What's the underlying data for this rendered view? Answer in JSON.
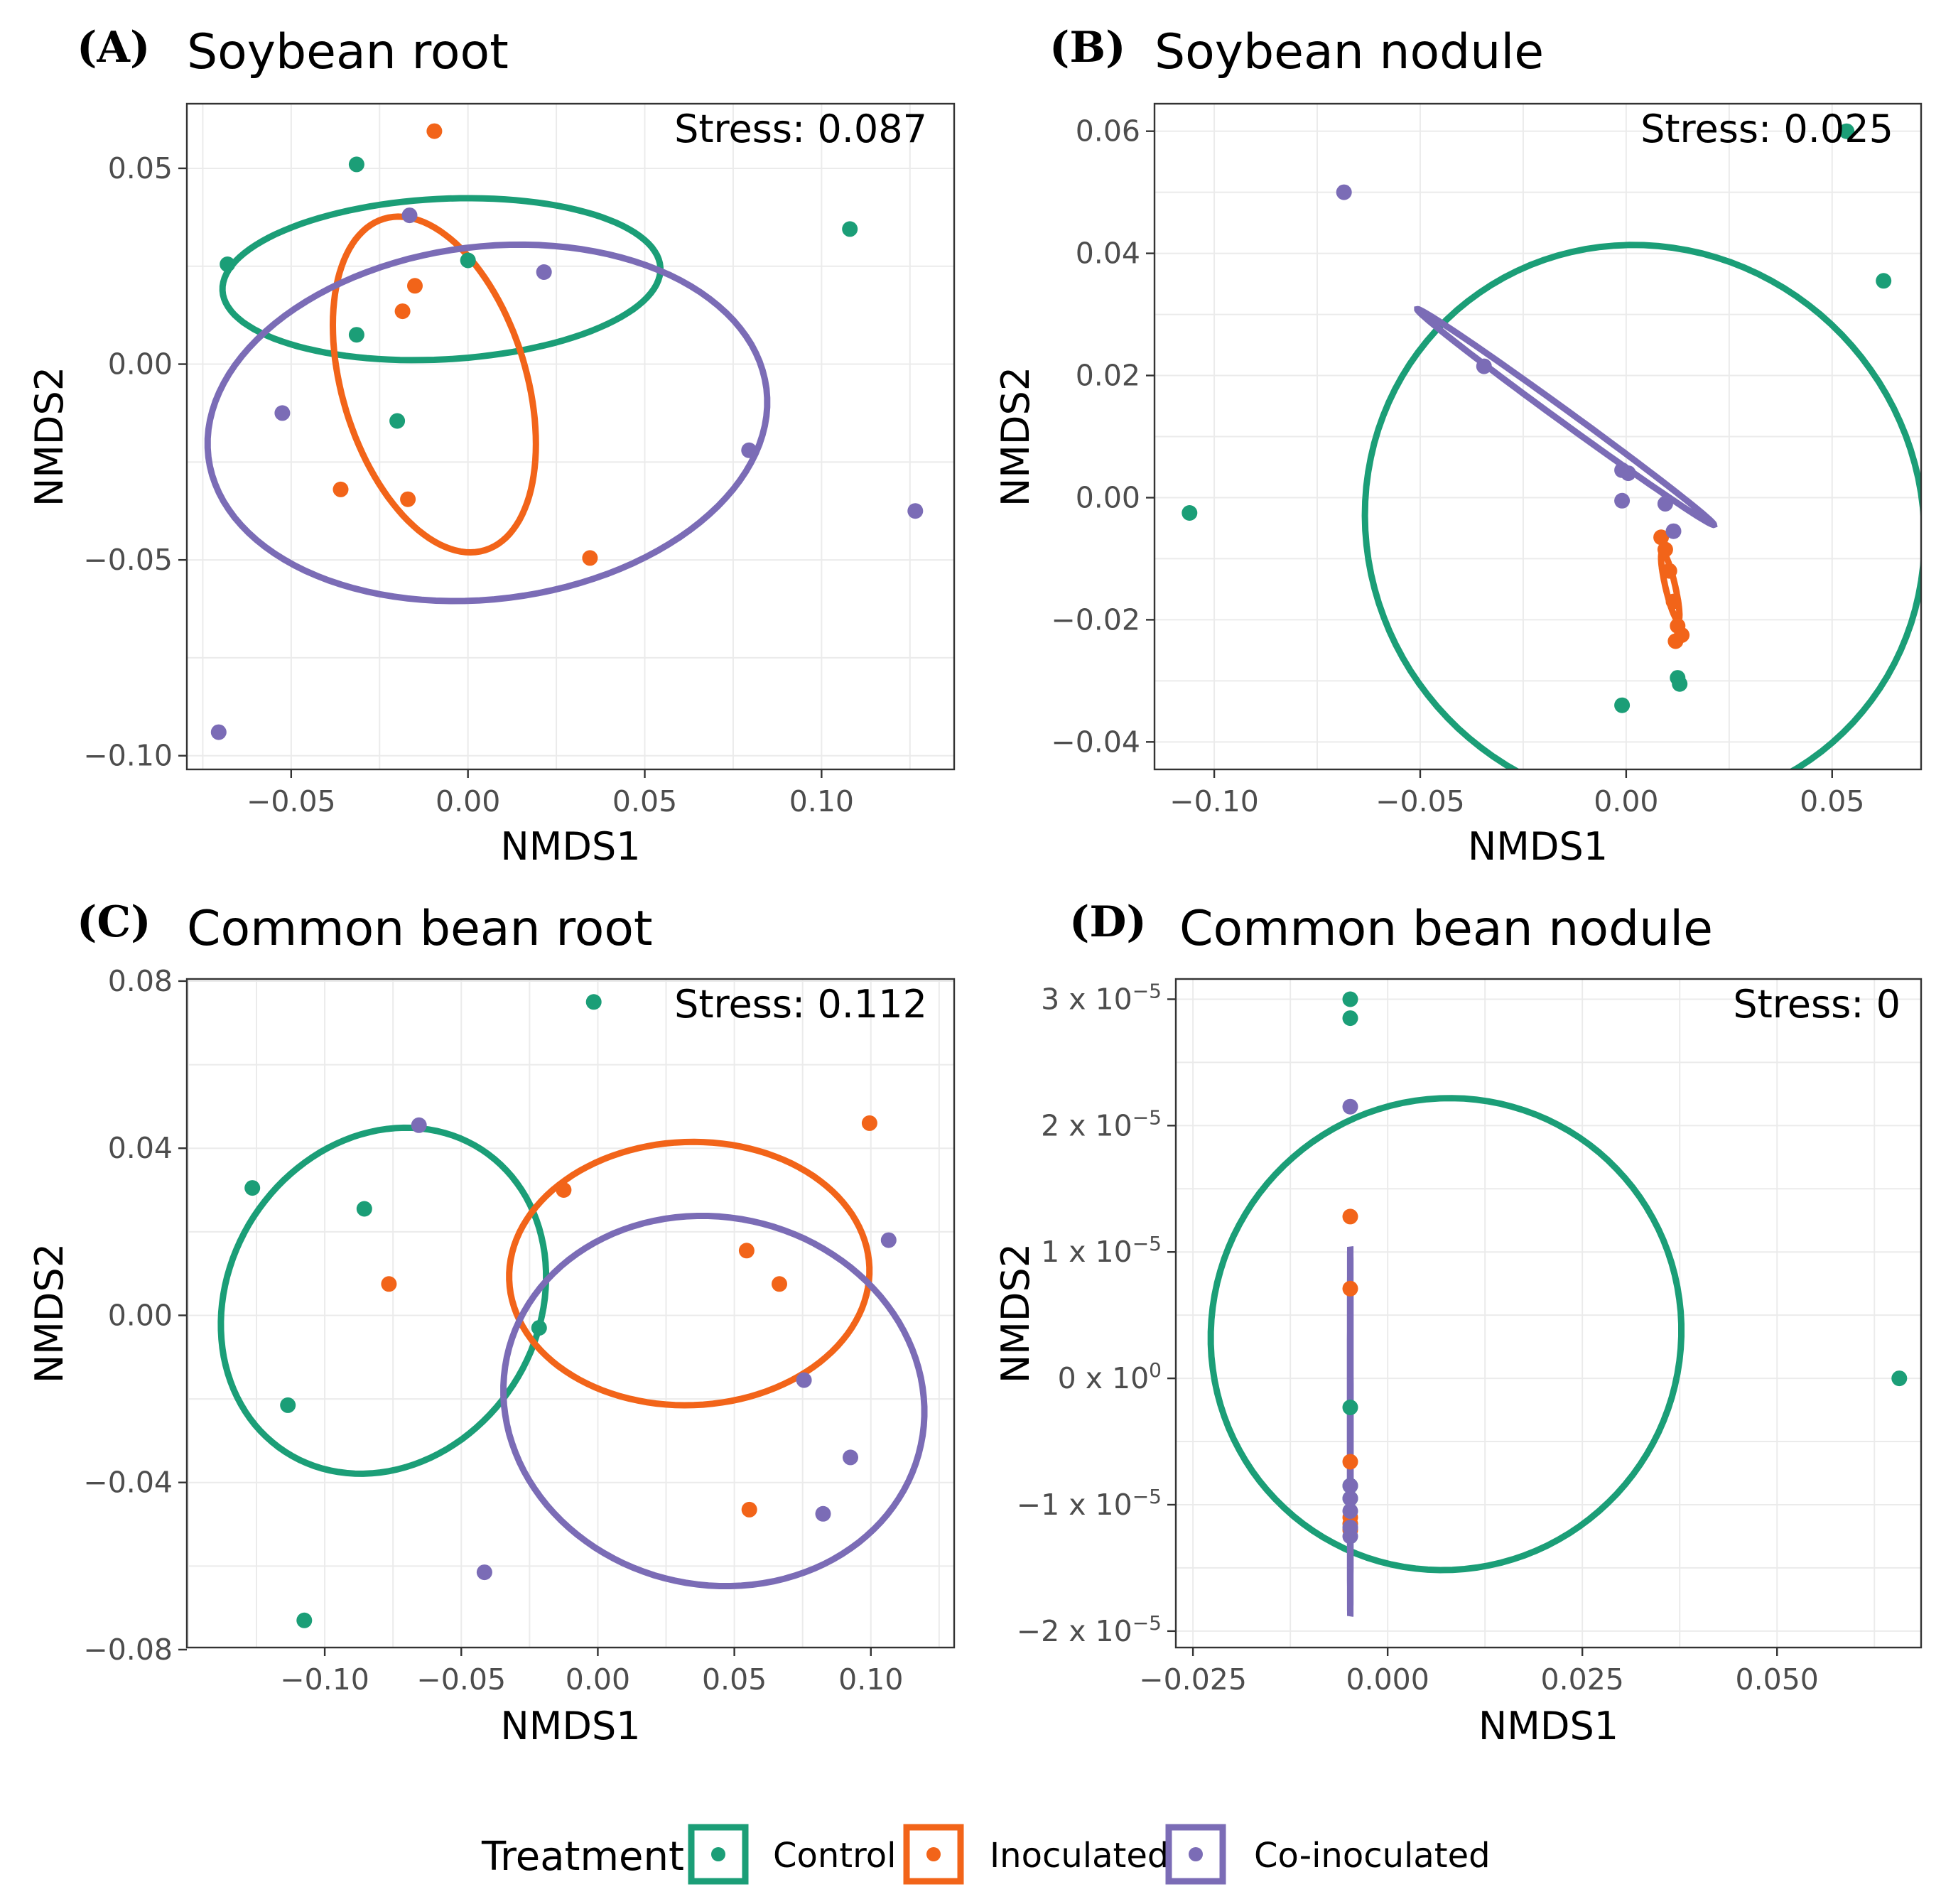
{
  "colors": {
    "Control": "#1b9e77",
    "Inoculated": "#f26419",
    "Co-inoculated": "#7b6cb6"
  },
  "legend": {
    "title": "Treatment",
    "items": [
      {
        "label": "Control",
        "group": "Control"
      },
      {
        "label": "Inoculated",
        "group": "Inoculated"
      },
      {
        "label": "Co-inoculated",
        "group": "Co-inoculated"
      }
    ]
  },
  "chart_data": [
    {
      "type": "scatter",
      "panel": "(A)",
      "title": "Soybean root",
      "stress": "Stress: 0.087",
      "xlabel": "NMDS1",
      "ylabel": "NMDS2",
      "xlim": [
        -0.0795,
        0.1375
      ],
      "ylim": [
        -0.1035,
        0.0665
      ],
      "xticks": [
        -0.05,
        0.0,
        0.05,
        0.1
      ],
      "xtick_labels": [
        "−0.05",
        "0.00",
        "0.05",
        "0.10"
      ],
      "yticks": [
        -0.1,
        -0.05,
        0.0,
        0.05
      ],
      "ytick_labels": [
        "−0.10",
        "−0.05",
        "0.00",
        "0.05"
      ],
      "series": [
        {
          "name": "Control",
          "points": [
            [
              -0.0315,
              0.051
            ],
            [
              -0.068,
              0.0255
            ],
            [
              -0.0315,
              0.0075
            ],
            [
              -0.02,
              -0.0145
            ],
            [
              0.0,
              0.0265
            ],
            [
              0.108,
              0.0345
            ]
          ]
        },
        {
          "name": "Inoculated",
          "points": [
            [
              -0.0095,
              0.0595
            ],
            [
              -0.015,
              0.02
            ],
            [
              -0.0185,
              0.0135
            ],
            [
              -0.036,
              -0.032
            ],
            [
              -0.017,
              -0.0345
            ],
            [
              0.0345,
              -0.0495
            ]
          ]
        },
        {
          "name": "Co-inoculated",
          "points": [
            [
              -0.0165,
              0.038
            ],
            [
              0.0215,
              0.0235
            ],
            [
              -0.0525,
              -0.0125
            ],
            [
              0.0795,
              -0.022
            ],
            [
              0.1265,
              -0.0375
            ],
            [
              -0.0705,
              -0.094
            ]
          ]
        }
      ],
      "ellipses": [
        {
          "group": "Control",
          "center": [
            -0.0075,
            0.0217
          ],
          "a": 0.062,
          "b": 0.0205,
          "angle": 3
        },
        {
          "group": "Inoculated",
          "center": [
            -0.0095,
            -0.0052
          ],
          "a": 0.049,
          "b": 0.0235,
          "angle": 107
        },
        {
          "group": "Co-inoculated",
          "center": [
            0.0055,
            -0.015
          ],
          "a": 0.0795,
          "b": 0.045,
          "angle": 7
        }
      ]
    },
    {
      "type": "scatter",
      "panel": "(B)",
      "title": "Soybean nodule",
      "stress": "Stress: 0.025",
      "xlabel": "NMDS1",
      "ylabel": "NMDS2",
      "xlim": [
        -0.1145,
        0.0716
      ],
      "ylim": [
        -0.0445,
        0.0645
      ],
      "xticks": [
        -0.1,
        -0.05,
        0.0,
        0.05
      ],
      "xtick_labels": [
        "−0.10",
        "−0.05",
        "0.00",
        "0.05"
      ],
      "yticks": [
        -0.04,
        -0.02,
        0.0,
        0.02,
        0.04,
        0.06
      ],
      "ytick_labels": [
        "−0.04",
        "−0.02",
        "0.00",
        "0.02",
        "0.04",
        "0.06"
      ],
      "series": [
        {
          "name": "Control",
          "points": [
            [
              -0.106,
              -0.0025
            ],
            [
              0.0625,
              0.0355
            ],
            [
              0.0535,
              0.06
            ],
            [
              -0.001,
              -0.034
            ],
            [
              0.0125,
              -0.0295
            ],
            [
              0.013,
              -0.0305
            ]
          ]
        },
        {
          "name": "Inoculated",
          "points": [
            [
              0.0085,
              -0.0065
            ],
            [
              0.0095,
              -0.0085
            ],
            [
              0.0105,
              -0.012
            ],
            [
              0.0115,
              -0.017
            ],
            [
              0.0125,
              -0.021
            ],
            [
              0.012,
              -0.0235
            ],
            [
              0.0135,
              -0.0225
            ]
          ]
        },
        {
          "name": "Co-inoculated",
          "points": [
            [
              -0.0685,
              0.05
            ],
            [
              -0.0345,
              0.0215
            ],
            [
              -0.001,
              0.0045
            ],
            [
              0.0005,
              0.004
            ],
            [
              -0.001,
              -0.0005
            ],
            [
              0.0095,
              -0.001
            ],
            [
              0.0115,
              -0.0055
            ]
          ]
        }
      ],
      "ellipses": [
        {
          "group": "Control",
          "center": [
            0.0045,
            -0.0047
          ],
          "a": 0.0695,
          "b": 0.045,
          "angle": 131
        },
        {
          "group": "Inoculated",
          "center": [
            0.0107,
            -0.0145
          ],
          "a": 0.0085,
          "b": 0.0008,
          "angle": 103
        },
        {
          "group": "Co-inoculated",
          "center": [
            -0.0147,
            0.0132
          ],
          "a": 0.0445,
          "b": 0.001,
          "angle": 144
        }
      ]
    },
    {
      "type": "scatter",
      "panel": "(C)",
      "title": "Common bean root",
      "stress": "Stress: 0.112",
      "xlabel": "NMDS1",
      "ylabel": "NMDS2",
      "xlim": [
        -0.1505,
        0.1305
      ],
      "ylim": [
        -0.0795,
        0.0805
      ],
      "xticks": [
        -0.1,
        -0.05,
        0.0,
        0.05,
        0.1
      ],
      "xtick_labels": [
        "−0.10",
        "−0.05",
        "0.00",
        "0.05",
        "0.10"
      ],
      "yticks": [
        -0.08,
        -0.04,
        0.0,
        0.04,
        0.08
      ],
      "ytick_labels": [
        "−0.08",
        "−0.04",
        "0.00",
        "0.04",
        "0.08"
      ],
      "series": [
        {
          "name": "Control",
          "points": [
            [
              -0.0015,
              0.075
            ],
            [
              -0.1265,
              0.0305
            ],
            [
              -0.0855,
              0.0255
            ],
            [
              -0.1135,
              -0.0215
            ],
            [
              -0.1075,
              -0.073
            ],
            [
              -0.0215,
              -0.003
            ]
          ]
        },
        {
          "name": "Inoculated",
          "points": [
            [
              0.0995,
              0.046
            ],
            [
              -0.0125,
              0.03
            ],
            [
              -0.0765,
              0.0075
            ],
            [
              0.0545,
              0.0155
            ],
            [
              0.0665,
              0.0075
            ],
            [
              0.0555,
              -0.0465
            ]
          ]
        },
        {
          "name": "Co-inoculated",
          "points": [
            [
              -0.0655,
              0.0455
            ],
            [
              0.1065,
              0.018
            ],
            [
              0.0755,
              -0.0155
            ],
            [
              0.0925,
              -0.034
            ],
            [
              0.0825,
              -0.0475
            ],
            [
              -0.0415,
              -0.0615
            ]
          ]
        }
      ],
      "ellipses": [
        {
          "group": "Control",
          "center": [
            -0.0785,
            0.0035
          ],
          "a": 0.066,
          "b": 0.037,
          "angle": 57
        },
        {
          "group": "Inoculated",
          "center": [
            0.0335,
            0.01
          ],
          "a": 0.066,
          "b": 0.0315,
          "angle": 2
        },
        {
          "group": "Co-inoculated",
          "center": [
            0.0425,
            -0.0205
          ],
          "a": 0.0775,
          "b": 0.044,
          "angle": -12
        }
      ]
    },
    {
      "type": "scatter",
      "panel": "(D)",
      "title": "Common bean nodule",
      "stress": "Stress: 0",
      "xlabel": "NMDS1",
      "ylabel": "NMDS2",
      "xlim": [
        -0.0272,
        0.0685
      ],
      "ylim": [
        -2.13e-05,
        3.16e-05
      ],
      "xticks": [
        -0.025,
        0.0,
        0.025,
        0.05
      ],
      "xtick_labels": [
        "−0.025",
        "0.000",
        "0.025",
        "0.050"
      ],
      "yticks": [
        -2e-05,
        -1e-05,
        0.0,
        1e-05,
        2e-05,
        3e-05
      ],
      "ytick_labels": [
        {
          "m": "−2 x 10",
          "e": "−5"
        },
        {
          "m": "−1 x 10",
          "e": "−5"
        },
        {
          "m": "0 x 10",
          "e": "0"
        },
        {
          "m": "1 x 10",
          "e": "−5"
        },
        {
          "m": "2 x 10",
          "e": "−5"
        },
        {
          "m": "3 x 10",
          "e": "−5"
        }
      ],
      "series": [
        {
          "name": "Control",
          "points": [
            [
              -0.0048,
              3e-05
            ],
            [
              -0.0048,
              2.85e-05
            ],
            [
              -0.0048,
              -2.3e-06
            ],
            [
              -0.0048,
              -8.5e-06
            ],
            [
              -0.0048,
              -9.5e-06
            ],
            [
              0.0657,
              0.0
            ]
          ]
        },
        {
          "name": "Inoculated",
          "points": [
            [
              -0.0048,
              1.28e-05
            ],
            [
              -0.0048,
              7.1e-06
            ],
            [
              -0.0048,
              -6.6e-06
            ],
            [
              -0.0048,
              -1.1e-05
            ],
            [
              -0.0048,
              -1.15e-05
            ],
            [
              -0.0048,
              -1.2e-05
            ]
          ]
        },
        {
          "name": "Co-inoculated",
          "points": [
            [
              -0.0048,
              2.15e-05
            ],
            [
              -0.0048,
              -8.5e-06
            ],
            [
              -0.0048,
              -9.5e-06
            ],
            [
              -0.0048,
              -1.05e-05
            ],
            [
              -0.0048,
              -1.18e-05
            ],
            [
              -0.0048,
              -1.25e-05
            ]
          ]
        }
      ],
      "ellipses": [
        {
          "group": "Control",
          "center": [
            0.0075,
            3.5e-06
          ],
          "a": 0.0305,
          "b": 1.85e-05,
          "angle": 50
        },
        {
          "group": "Co-inoculated",
          "center": [
            -0.0048,
            -4.2e-06
          ],
          "a": 1.46e-05,
          "b": 3.5e-07,
          "angle": 90
        }
      ]
    }
  ]
}
